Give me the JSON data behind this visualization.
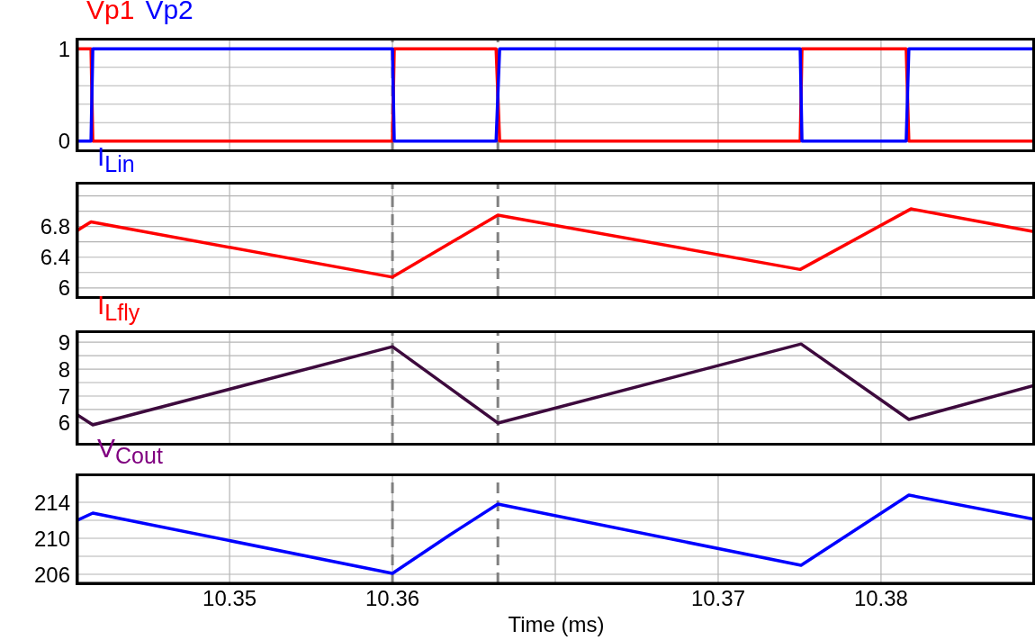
{
  "chart_data": [
    {
      "type": "line",
      "ylim": [
        -0.1,
        1.1
      ],
      "yticks": [
        0,
        {
          "value": 0.2,
          "label": null
        },
        {
          "value": 0.4,
          "label": null
        },
        {
          "value": 0.6,
          "label": null
        },
        {
          "value": 0.8,
          "label": null
        },
        1
      ],
      "xlim": [
        10.34886,
        10.3812
      ],
      "xticks": [
        10.354,
        10.3595,
        10.365,
        10.3705,
        10.376
      ],
      "tick_labels": "y",
      "grid": true,
      "legend": "top left",
      "line_style": "solid",
      "series": [
        {
          "name": "Vp1",
          "color": "#ff0000",
          "x": [
            10.34886,
            10.34932,
            10.34938,
            10.3595,
            10.35956,
            10.363,
            10.36312,
            10.37327,
            10.37333,
            10.37685,
            10.37694,
            10.3812
          ],
          "values": [
            1,
            1,
            0,
            0,
            1,
            1,
            0,
            0,
            1,
            1,
            0,
            0
          ]
        },
        {
          "name": "Vp2",
          "color": "#0000ff",
          "x": [
            10.34886,
            10.34932,
            10.34938,
            10.3595,
            10.35956,
            10.363,
            10.36312,
            10.37327,
            10.37333,
            10.37685,
            10.37694,
            10.3812
          ],
          "values": [
            0,
            0,
            1,
            1,
            0,
            0,
            1,
            1,
            0,
            0,
            1,
            1
          ]
        }
      ],
      "ref_lines": [
        {
          "axis": "x",
          "value": 10.3595,
          "color": "#808080",
          "line_style": "dashed"
        },
        {
          "axis": "x",
          "value": 10.36306,
          "color": "#808080",
          "line_style": "dashed"
        }
      ]
    },
    {
      "type": "line",
      "title": "I$_{Lin}$",
      "ylim": [
        5.88,
        7.36
      ],
      "yticks": [
        6,
        {
          "value": 6.2,
          "label": null
        },
        6.4,
        {
          "value": 6.6,
          "label": null
        },
        6.8,
        {
          "value": 7.0,
          "label": null
        },
        {
          "value": 7.2,
          "label": null
        }
      ],
      "xlim": [
        10.34886,
        10.3812
      ],
      "xticks": [
        10.354,
        10.3595,
        10.365,
        10.3705,
        10.376
      ],
      "tick_labels": "y",
      "grid": true,
      "line_style": "solid",
      "series": [
        {
          "color": "#ff0000",
          "x": [
            10.34886,
            10.34932,
            10.3595,
            10.36306,
            10.37327,
            10.37701,
            10.3812
          ],
          "values": [
            6.75,
            6.86,
            6.14,
            6.95,
            6.24,
            7.03,
            6.73
          ]
        }
      ],
      "ref_lines": [
        {
          "axis": "x",
          "value": 10.3595,
          "color": "#808080",
          "line_style": "dashed"
        },
        {
          "axis": "x",
          "value": 10.36306,
          "color": "#808080",
          "line_style": "dashed"
        }
      ]
    },
    {
      "type": "line",
      "title": "I$_{Lfly}$",
      "ylim": [
        5.23,
        9.37
      ],
      "yticks": [
        6,
        {
          "value": 6.5,
          "label": null
        },
        7,
        {
          "value": 7.5,
          "label": null
        },
        8,
        {
          "value": 8.5,
          "label": null
        },
        9
      ],
      "xlim": [
        10.34886,
        10.3812
      ],
      "xticks": [
        10.354,
        10.3595,
        10.365,
        10.3705,
        10.376
      ],
      "tick_labels": "y",
      "grid": true,
      "line_style": "solid",
      "series": [
        {
          "color": "#3d0a3d",
          "x": [
            10.34886,
            10.34938,
            10.3595,
            10.36306,
            10.3733,
            10.37694,
            10.3812
          ],
          "values": [
            6.3,
            5.93,
            8.83,
            6.0,
            8.93,
            6.13,
            7.4
          ]
        }
      ],
      "ref_lines": [
        {
          "axis": "x",
          "value": 10.3595,
          "color": "#808080",
          "line_style": "dashed"
        },
        {
          "axis": "x",
          "value": 10.36306,
          "color": "#808080",
          "line_style": "dashed"
        }
      ]
    },
    {
      "type": "line",
      "title": "V$_{Cout}$",
      "xlabel": "Time (ms)",
      "ylim": [
        205,
        217
      ],
      "yticks": [
        206,
        {
          "value": 208,
          "label": null
        },
        210,
        {
          "value": 212,
          "label": null
        },
        214
      ],
      "xlim": [
        10.34886,
        10.3812
      ],
      "xticks": [
        {
          "value": 10.354,
          "label": "10.35"
        },
        {
          "value": 10.3595,
          "label": "10.36"
        },
        {
          "value": 10.365,
          "label": null
        },
        {
          "value": 10.3705,
          "label": "10.37"
        },
        {
          "value": 10.376,
          "label": "10.38"
        }
      ],
      "grid": true,
      "line_style": "solid",
      "series": [
        {
          "color": "#0000ff",
          "x": [
            10.34886,
            10.34938,
            10.3595,
            10.36145,
            10.36306,
            10.3733,
            10.37694,
            10.3812
          ],
          "values": [
            212,
            212.8,
            206.1,
            210.4,
            213.8,
            207,
            214.8,
            212.1
          ]
        }
      ],
      "ref_lines": [
        {
          "axis": "x",
          "value": 10.3595,
          "color": "#808080",
          "line_style": "dashed"
        },
        {
          "axis": "x",
          "value": 10.36306,
          "color": "#808080",
          "line_style": "dashed"
        }
      ]
    }
  ]
}
